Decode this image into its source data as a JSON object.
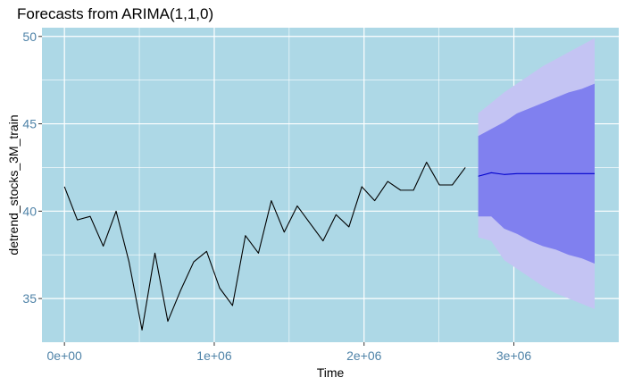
{
  "chart_data": {
    "type": "line",
    "title": "Forecasts from ARIMA(1,1,0)",
    "xlabel": "Time",
    "ylabel": "detrend_stocks_3M_train",
    "xlim": [
      -150000,
      3700000
    ],
    "ylim": [
      32.5,
      50.5
    ],
    "xticks": [
      {
        "value": 0,
        "label": "0e+00"
      },
      {
        "value": 1000000,
        "label": "1e+06"
      },
      {
        "value": 2000000,
        "label": "2e+06"
      },
      {
        "value": 3000000,
        "label": "3e+06"
      }
    ],
    "yticks": [
      {
        "value": 35,
        "label": "35"
      },
      {
        "value": 40,
        "label": "40"
      },
      {
        "value": 45,
        "label": "45"
      },
      {
        "value": 50,
        "label": "50"
      }
    ],
    "grid": true,
    "series": [
      {
        "role": "observed",
        "color": "#000000",
        "x": [
          0,
          86000,
          172000,
          259000,
          345000,
          431000,
          518000,
          604000,
          690000,
          777000,
          863000,
          949000,
          1036000,
          1122000,
          1208000,
          1295000,
          1381000,
          1467000,
          1554000,
          1640000,
          1726000,
          1813000,
          1899000,
          1985000,
          2071000,
          2158000,
          2244000,
          2330000,
          2417000,
          2503000,
          2589000,
          2676000
        ],
        "y": [
          41.4,
          39.5,
          39.7,
          38.0,
          40.0,
          37.1,
          33.2,
          37.6,
          33.7,
          35.5,
          37.1,
          37.7,
          35.6,
          34.6,
          38.6,
          37.6,
          40.6,
          38.8,
          40.3,
          39.3,
          38.3,
          39.8,
          39.1,
          41.4,
          40.6,
          41.7,
          41.2,
          41.2,
          42.8,
          41.5,
          41.5,
          42.5
        ]
      },
      {
        "role": "forecast",
        "color": "#0000cc",
        "x": [
          2762000,
          2849000,
          2935000,
          3021000,
          3108000,
          3194000,
          3280000,
          3366000,
          3453000,
          3539000
        ],
        "y": [
          42.0,
          42.2,
          42.1,
          42.15,
          42.15,
          42.15,
          42.15,
          42.15,
          42.15,
          42.15
        ]
      }
    ],
    "intervals": [
      {
        "level": "95",
        "color": "#c4c4f3",
        "x": [
          2762000,
          2849000,
          2935000,
          3021000,
          3108000,
          3194000,
          3280000,
          3366000,
          3453000,
          3539000
        ],
        "lower": [
          38.5,
          38.3,
          37.2,
          36.7,
          36.2,
          35.7,
          35.3,
          35.0,
          34.7,
          34.4
        ],
        "upper": [
          45.6,
          46.2,
          46.8,
          47.3,
          47.8,
          48.3,
          48.7,
          49.1,
          49.5,
          49.9
        ]
      },
      {
        "level": "80",
        "color": "#8080ef",
        "x": [
          2762000,
          2849000,
          2935000,
          3021000,
          3108000,
          3194000,
          3280000,
          3366000,
          3453000,
          3539000
        ],
        "lower": [
          39.7,
          39.7,
          39.0,
          38.7,
          38.3,
          38.0,
          37.8,
          37.5,
          37.3,
          37.0
        ],
        "upper": [
          44.3,
          44.7,
          45.1,
          45.6,
          45.9,
          46.2,
          46.5,
          46.8,
          47.0,
          47.3
        ]
      }
    ],
    "colors": {
      "panel_background": "#add8e6",
      "grid_major": "#ffffff",
      "tick_label": "#4f83a8"
    }
  }
}
